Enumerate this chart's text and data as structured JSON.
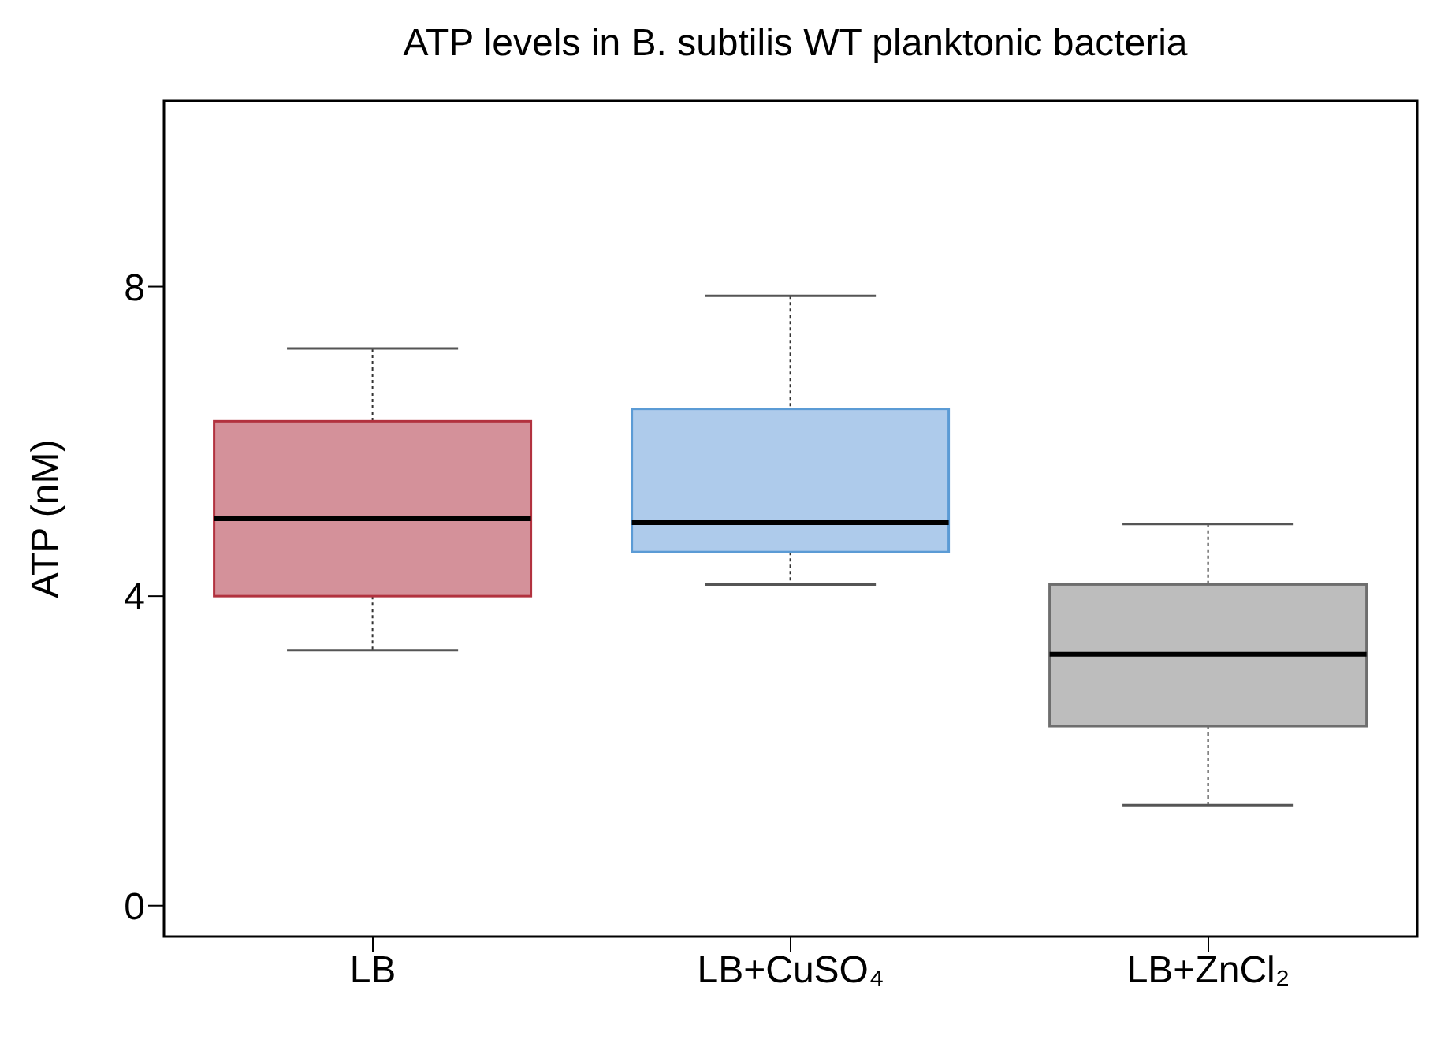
{
  "chart_data": {
    "type": "box",
    "title": "ATP levels in B. subtilis WT planktonic bacteria",
    "ylabel": "ATP (nM)",
    "categories": [
      "LB",
      "LB+CuSO₄",
      "LB+ZnCl₂"
    ],
    "series": [
      {
        "colors": [
          "#d4919a",
          "#aecbeb",
          "#bdbdbd"
        ],
        "boxes": [
          {
            "low": 3.3,
            "q1": 4.0,
            "median": 5.0,
            "q3": 6.26,
            "high": 7.2
          },
          {
            "low": 4.15,
            "q1": 4.57,
            "median": 4.95,
            "q3": 6.42,
            "high": 7.88
          },
          {
            "low": 1.3,
            "q1": 2.32,
            "median": 3.25,
            "q3": 4.15,
            "high": 4.93
          }
        ]
      }
    ],
    "ylim": [
      -0.4,
      10.4
    ],
    "yticks": [
      0,
      4,
      8
    ]
  }
}
